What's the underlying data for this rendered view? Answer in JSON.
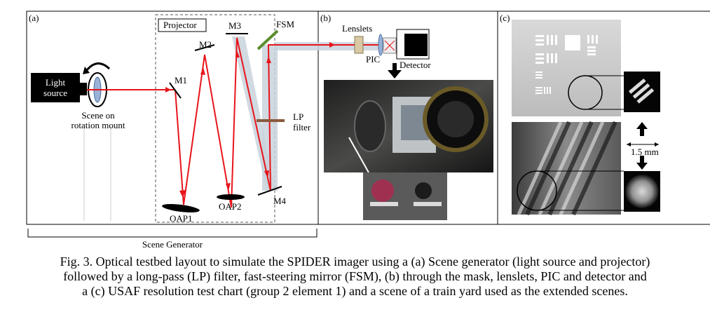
{
  "figure": {
    "panels": {
      "a": {
        "tag": "(a)",
        "light_source_line1": "Light",
        "light_source_line2": "source",
        "scene_line1": "Scene on",
        "scene_line2": "rotation mount",
        "projector": "Projector",
        "m1": "M1",
        "m2": "M2",
        "m3": "M3",
        "m4": "M4",
        "oap1": "OAP1",
        "oap2": "OAP2",
        "fsm": "FSM",
        "lp_line1": "LP",
        "lp_line2": "filter",
        "scene_generator": "Scene Generator"
      },
      "b": {
        "tag": "(b)",
        "lenslets": "Lenslets",
        "pic": "PIC",
        "detector": "Detector"
      },
      "c": {
        "tag": "(c)",
        "scale": "1.5 mm"
      }
    },
    "colors": {
      "beam": "#e8141b",
      "beam_shade": "#c9d2dc",
      "fsm_green": "#5a8c2e",
      "lp_brown": "#8a5a3c"
    }
  },
  "caption": {
    "line1": "Fig. 3. Optical testbed layout to simulate the SPIDER imager using a (a) Scene generator (light source and projector)",
    "line2": "followed by a long-pass (LP) filter, fast-steering mirror (FSM), (b) through the mask, lenslets, PIC and detector and",
    "line3": "a (c) USAF resolution test chart (group 2 element 1) and a scene of a train yard used as the extended scenes."
  }
}
